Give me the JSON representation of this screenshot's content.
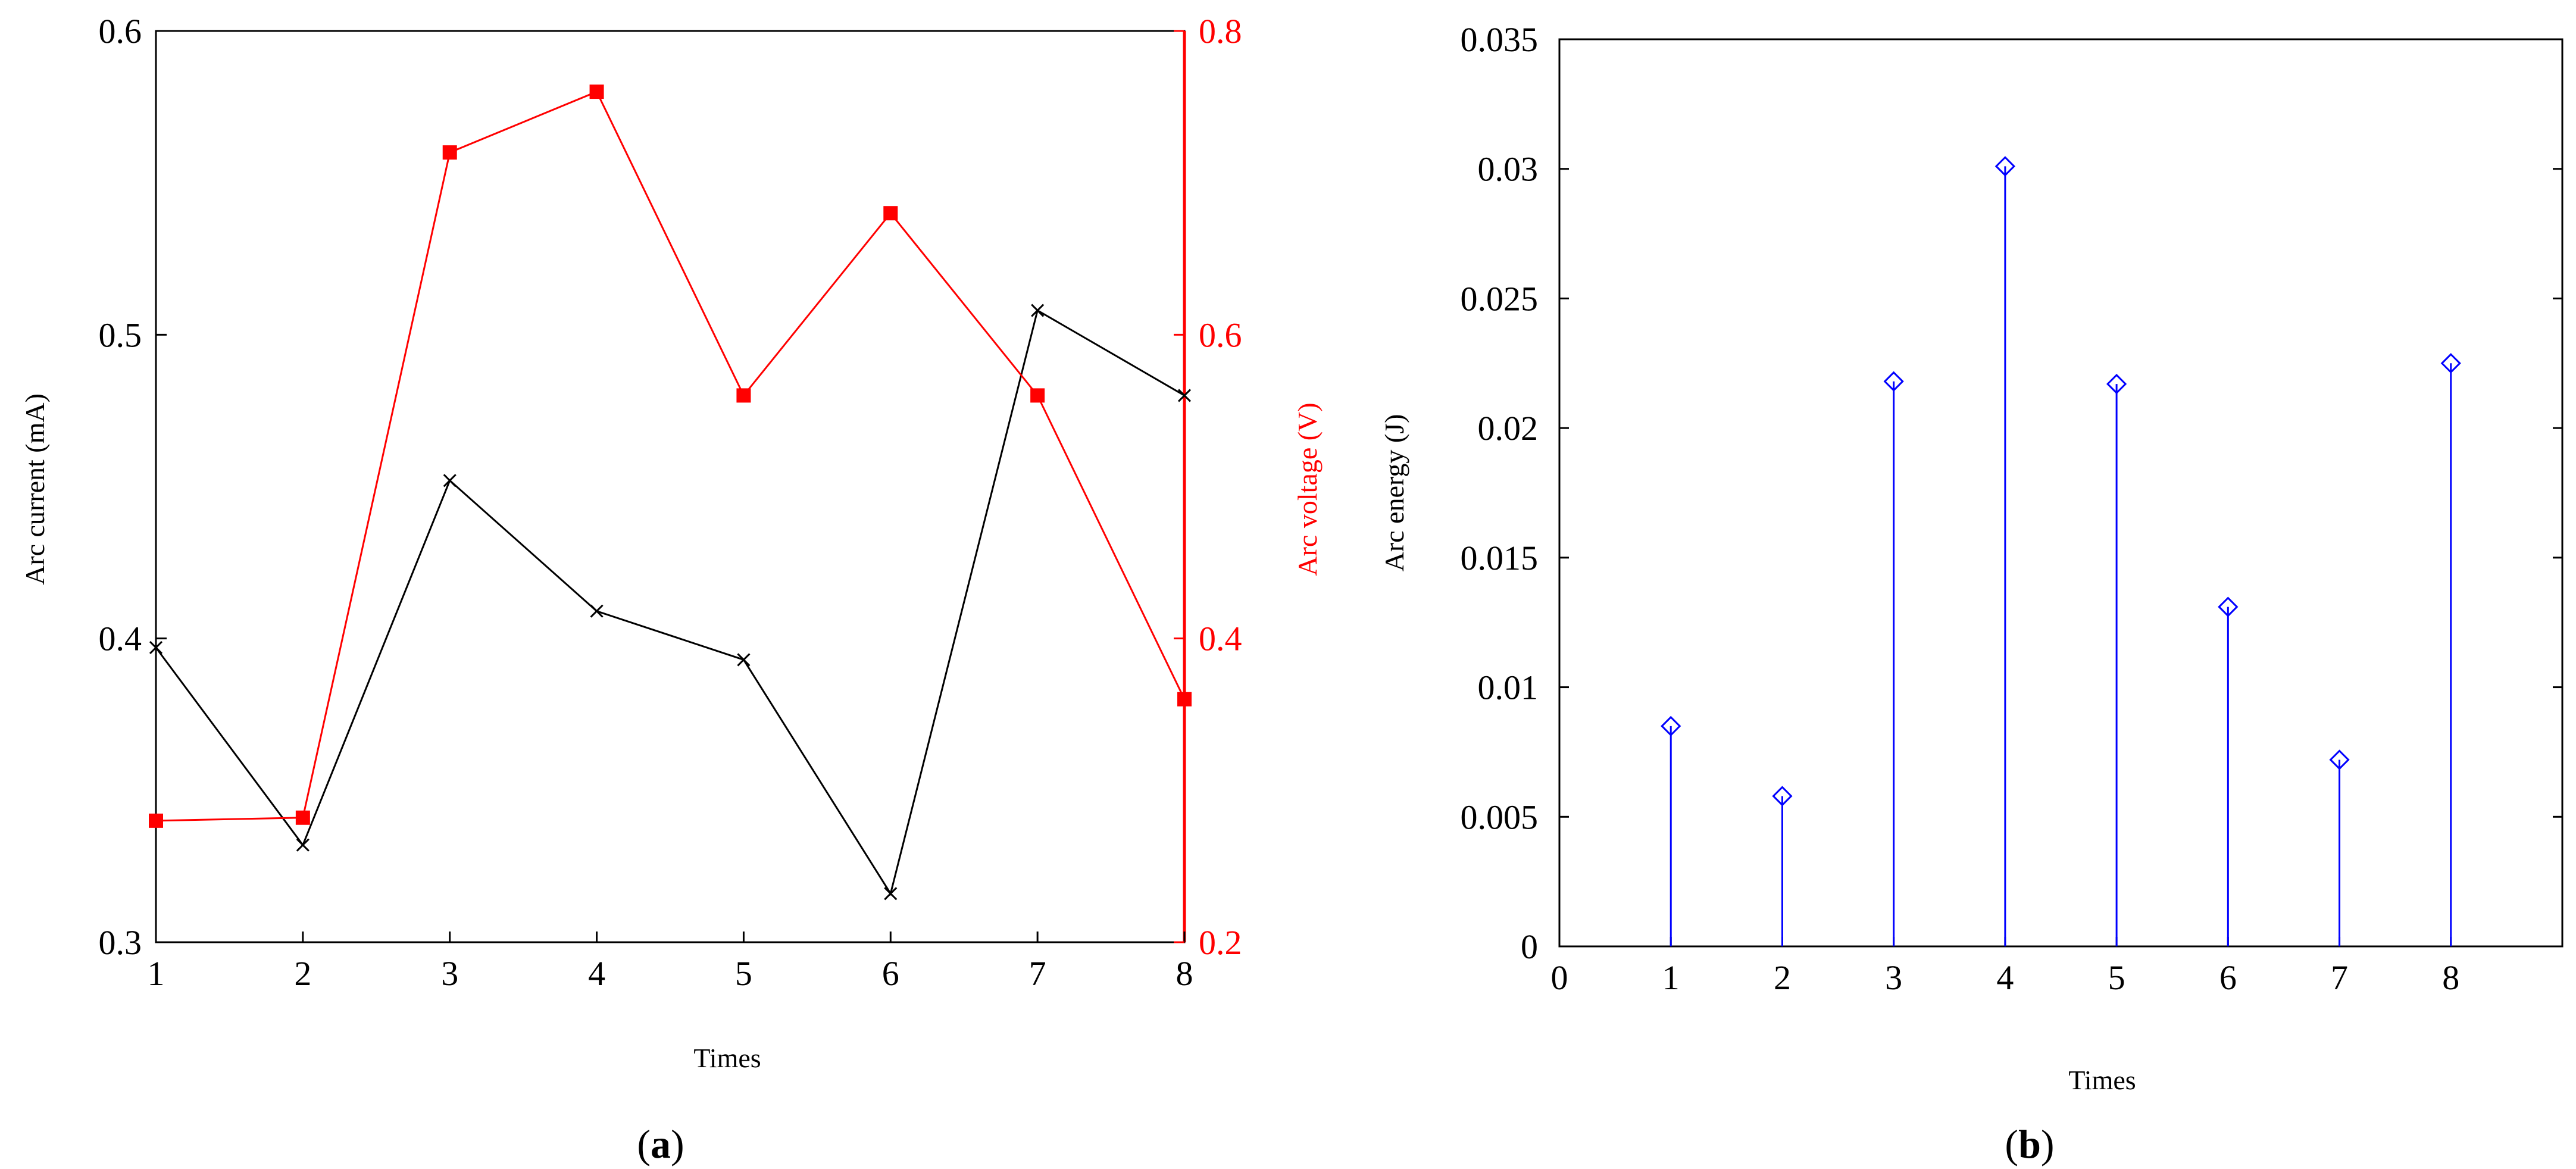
{
  "chart_data": [
    {
      "panel_label": "a",
      "type": "line",
      "xlabel": "Times",
      "ylabel": "Arc current (mA)",
      "y2label": "Arc voltage (V)",
      "x": [
        1,
        2,
        3,
        4,
        5,
        6,
        7,
        8
      ],
      "xticks": [
        "1",
        "2",
        "3",
        "4",
        "5",
        "6",
        "7",
        "8"
      ],
      "xlim": [
        1,
        8
      ],
      "ylim": [
        0.3,
        0.6
      ],
      "yticks": [
        "0.3",
        "0.4",
        "0.5",
        "0.6"
      ],
      "y2lim": [
        0.2,
        0.8
      ],
      "y2ticks": [
        "0.2",
        "0.4",
        "0.6",
        "0.8"
      ],
      "grid": false,
      "series": [
        {
          "axis": "left",
          "color": "#000000",
          "marker": "x",
          "values": [
            0.397,
            0.332,
            0.452,
            0.409,
            0.393,
            0.316,
            0.508,
            0.48
          ]
        },
        {
          "axis": "right",
          "color": "#ff0000",
          "marker": "square",
          "values": [
            0.28,
            0.282,
            0.72,
            0.76,
            0.56,
            0.68,
            0.56,
            0.36
          ]
        }
      ]
    },
    {
      "panel_label": "b",
      "type": "stem",
      "xlabel": "Times",
      "ylabel": "Arc energy (J)",
      "x": [
        1,
        2,
        3,
        4,
        5,
        6,
        7,
        8
      ],
      "xticks": [
        "0",
        "1",
        "2",
        "3",
        "4",
        "5",
        "6",
        "7",
        "8"
      ],
      "xlim": [
        0,
        9
      ],
      "ylim": [
        0,
        0.035
      ],
      "yticks": [
        "0",
        "0.005",
        "0.01",
        "0.015",
        "0.02",
        "0.025",
        "0.03",
        "0.035"
      ],
      "grid": false,
      "series": [
        {
          "color": "#0000ff",
          "marker": "diamond",
          "values": [
            0.0085,
            0.0058,
            0.0218,
            0.0301,
            0.0217,
            0.0131,
            0.0072,
            0.0225
          ]
        }
      ]
    }
  ]
}
